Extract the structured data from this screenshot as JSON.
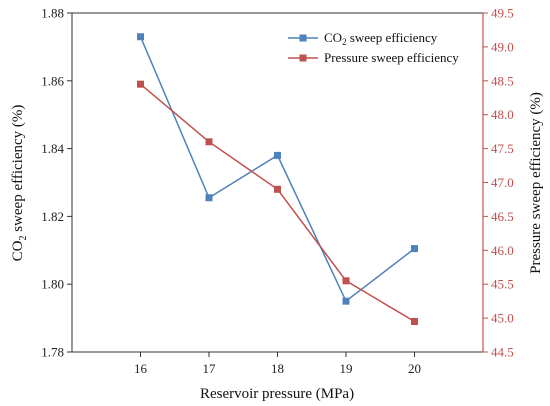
{
  "chart_data": {
    "type": "line",
    "title": "",
    "xlabel": "Reservoir pressure (MPa)",
    "x": [
      16,
      17,
      18,
      19,
      20
    ],
    "x_ticks": [
      "16",
      "17",
      "18",
      "19",
      "20"
    ],
    "y_left": {
      "label_prefix": "CO",
      "label_sub": "2",
      "label_suffix": " sweep efficiency (%)",
      "ylim": [
        1.78,
        1.88
      ],
      "ticks": [
        "1.78",
        "1.80",
        "1.82",
        "1.84",
        "1.86",
        "1.88"
      ],
      "color": "#222222"
    },
    "y_right": {
      "label": "Pressure sweep efficiency (%)",
      "ylim": [
        44.5,
        49.5
      ],
      "ticks": [
        "44.5",
        "45.0",
        "45.5",
        "46.0",
        "46.5",
        "47.0",
        "47.5",
        "48.0",
        "48.5",
        "49.0",
        "49.5"
      ],
      "color": "#c0504d"
    },
    "series": [
      {
        "name_prefix": "CO",
        "name_sub": "2",
        "name_suffix": " sweep efficiency",
        "axis": "left",
        "color": "#4f81bd",
        "marker": "square",
        "values": [
          1.873,
          1.8255,
          1.838,
          1.795,
          1.8105
        ]
      },
      {
        "name": "Pressure sweep efficiency",
        "axis": "right",
        "color": "#c0504d",
        "marker": "square",
        "values": [
          48.45,
          47.6,
          46.9,
          45.55,
          44.95
        ]
      }
    ],
    "legend": "top-right",
    "grid": false
  }
}
